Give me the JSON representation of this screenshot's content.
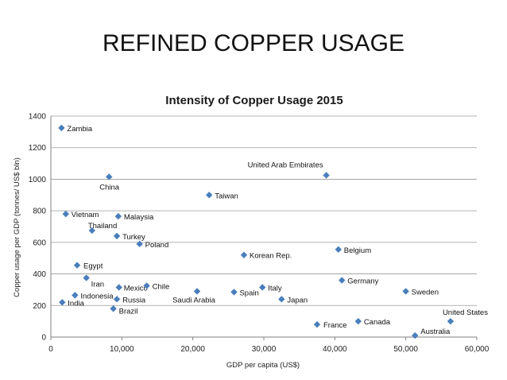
{
  "slide": {
    "title": "REFINED COPPER USAGE"
  },
  "chart_data": {
    "type": "scatter",
    "title": "Intensity of  Copper Usage 2015",
    "xlabel": "GDP per capita (US$)",
    "ylabel": "Copper usage per GDP (tonnes/ US$ bln)",
    "xlim": [
      0,
      60000
    ],
    "ylim": [
      0,
      1400
    ],
    "x_ticks": [
      "0",
      "10,000",
      "20,000",
      "30,000",
      "40,000",
      "50,000",
      "60,000"
    ],
    "y_ticks": [
      "0",
      "200",
      "400",
      "600",
      "800",
      "1000",
      "1200",
      "1400"
    ],
    "grid": true,
    "marker_color": "#4a7ebb",
    "points": [
      {
        "label": "Zambia",
        "x": 1500,
        "y": 1325
      },
      {
        "label": "China",
        "x": 8200,
        "y": 1015
      },
      {
        "label": "United Arab Embirates",
        "x": 38800,
        "y": 1025
      },
      {
        "label": "Taiwan",
        "x": 22300,
        "y": 900
      },
      {
        "label": "Vietnam",
        "x": 2100,
        "y": 780
      },
      {
        "label": "Malaysia",
        "x": 9500,
        "y": 765
      },
      {
        "label": "Thailand",
        "x": 5800,
        "y": 675
      },
      {
        "label": "Turkey",
        "x": 9300,
        "y": 640
      },
      {
        "label": "Poland",
        "x": 12500,
        "y": 590
      },
      {
        "label": "Korean Rep.",
        "x": 27200,
        "y": 520
      },
      {
        "label": "Belgium",
        "x": 40500,
        "y": 555
      },
      {
        "label": "Egypt",
        "x": 3700,
        "y": 455
      },
      {
        "label": "Iran",
        "x": 5000,
        "y": 375
      },
      {
        "label": "Germany",
        "x": 41000,
        "y": 360
      },
      {
        "label": "Mexico",
        "x": 9600,
        "y": 315
      },
      {
        "label": "Chile",
        "x": 13500,
        "y": 325
      },
      {
        "label": "Italy",
        "x": 29800,
        "y": 315
      },
      {
        "label": "Indonesia",
        "x": 3400,
        "y": 265
      },
      {
        "label": "Saudi Arabia",
        "x": 20600,
        "y": 290
      },
      {
        "label": "Spain",
        "x": 25800,
        "y": 285
      },
      {
        "label": "Sweden",
        "x": 50000,
        "y": 290
      },
      {
        "label": "India",
        "x": 1600,
        "y": 220
      },
      {
        "label": "Russia",
        "x": 9300,
        "y": 240
      },
      {
        "label": "Japan",
        "x": 32500,
        "y": 240
      },
      {
        "label": "Brazil",
        "x": 8800,
        "y": 180
      },
      {
        "label": "United States",
        "x": 56300,
        "y": 100
      },
      {
        "label": "France",
        "x": 37500,
        "y": 80
      },
      {
        "label": "Canada",
        "x": 43300,
        "y": 100
      },
      {
        "label": "Australia",
        "x": 51300,
        "y": 10
      }
    ]
  }
}
